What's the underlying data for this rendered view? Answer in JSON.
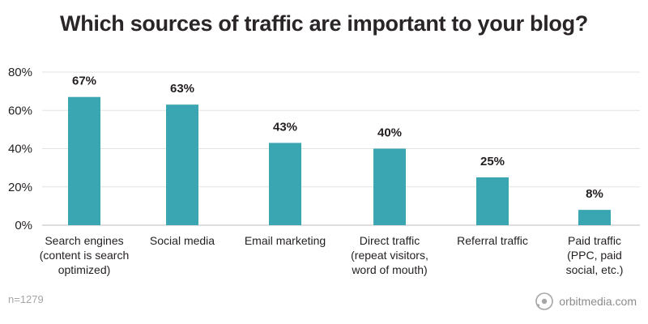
{
  "chart_data": {
    "type": "bar",
    "title": "Which sources of traffic are important to your blog?",
    "categories": [
      [
        "Search engines",
        "(content is search",
        "optimized)"
      ],
      [
        "Social media"
      ],
      [
        "Email marketing"
      ],
      [
        "Direct traffic",
        "(repeat visitors,",
        "word of mouth)"
      ],
      [
        "Referral traffic"
      ],
      [
        "Paid traffic",
        "(PPC, paid",
        "social, etc.)"
      ]
    ],
    "values": [
      67,
      63,
      43,
      40,
      25,
      8
    ],
    "value_labels": [
      "67%",
      "63%",
      "43%",
      "40%",
      "25%",
      "8%"
    ],
    "yticks": [
      0,
      20,
      40,
      60,
      80
    ],
    "ytick_labels": [
      "0%",
      "20%",
      "40%",
      "60%",
      "80%"
    ],
    "ylim": [
      0,
      80
    ],
    "grid": true,
    "bar_color": "#3aa6b2"
  },
  "footer": {
    "sample_size": "n=1279",
    "brand": "orbitmedia.com"
  }
}
